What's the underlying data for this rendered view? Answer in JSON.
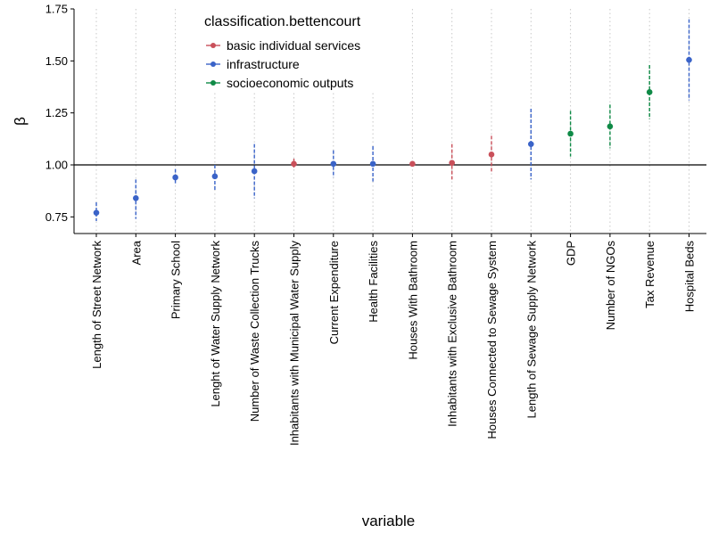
{
  "chart_data": {
    "type": "scatter",
    "xlabel": "variable",
    "ylabel": "β",
    "ylim": [
      0.67,
      1.75
    ],
    "yticks": [
      "0.75",
      "1.00",
      "1.25",
      "1.50",
      "1.75"
    ],
    "reference_line": 1.0,
    "grid": "vertical dotted",
    "legend": {
      "title": "classification.bettencourt",
      "placement": "top-center",
      "entries": [
        {
          "name": "basic individual services",
          "color": "#c9505a"
        },
        {
          "name": "infrastructure",
          "color": "#3a63c8"
        },
        {
          "name": "socioeconomic outputs",
          "color": "#0f8a46"
        }
      ]
    },
    "categories": [
      "Length of Street Network",
      "Area",
      "Primary School",
      "Lenght of Water Supply Network",
      "Number of Waste Collection Trucks",
      "Inhabitants with Municipal Water Supply",
      "Current Expenditure",
      "Health Facilities",
      "Houses With Bathroom",
      "Inhabitants with Exclusive Bathroom",
      "Houses Connected to Sewage System",
      "Length of Sewage Supply Network",
      "GDP",
      "Number of NGOs",
      "Tax Revenue",
      "Hospital Beds"
    ],
    "points": [
      {
        "value": 0.77,
        "low": 0.73,
        "high": 0.82,
        "group": "infrastructure"
      },
      {
        "value": 0.84,
        "low": 0.74,
        "high": 0.93,
        "group": "infrastructure"
      },
      {
        "value": 0.94,
        "low": 0.91,
        "high": 0.98,
        "group": "infrastructure"
      },
      {
        "value": 0.945,
        "low": 0.88,
        "high": 1.0,
        "group": "infrastructure"
      },
      {
        "value": 0.97,
        "low": 0.84,
        "high": 1.1,
        "group": "infrastructure"
      },
      {
        "value": 1.005,
        "low": 0.98,
        "high": 1.03,
        "group": "basic individual services"
      },
      {
        "value": 1.005,
        "low": 0.94,
        "high": 1.07,
        "group": "infrastructure"
      },
      {
        "value": 1.005,
        "low": 0.92,
        "high": 1.09,
        "group": "infrastructure"
      },
      {
        "value": 1.005,
        "low": 0.995,
        "high": 1.015,
        "group": "basic individual services"
      },
      {
        "value": 1.01,
        "low": 0.93,
        "high": 1.1,
        "group": "basic individual services"
      },
      {
        "value": 1.05,
        "low": 0.96,
        "high": 1.14,
        "group": "basic individual services"
      },
      {
        "value": 1.1,
        "low": 0.93,
        "high": 1.27,
        "group": "infrastructure"
      },
      {
        "value": 1.15,
        "low": 1.04,
        "high": 1.26,
        "group": "socioeconomic outputs"
      },
      {
        "value": 1.185,
        "low": 1.08,
        "high": 1.29,
        "group": "socioeconomic outputs"
      },
      {
        "value": 1.35,
        "low": 1.22,
        "high": 1.48,
        "group": "socioeconomic outputs"
      },
      {
        "value": 1.505,
        "low": 1.31,
        "high": 1.7,
        "group": "infrastructure"
      }
    ]
  }
}
